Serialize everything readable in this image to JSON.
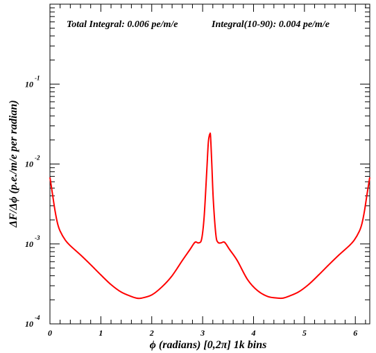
{
  "chart_data": {
    "type": "line",
    "title": "",
    "annotations": [
      "Total Integral: 0.006 pe/m/e",
      "Integral(10-90): 0.004 pe/m/e"
    ],
    "xlabel": "ϕ (radians) [0,2π] 1k bins",
    "ylabel": "ΔF/Δϕ (p.e./m/e per radian)",
    "xlim": [
      0,
      6.2832
    ],
    "ylim": [
      0.0001,
      1.0
    ],
    "yscale": "log",
    "grid": false,
    "x_ticks": [
      {
        "value": 0,
        "label": "0"
      },
      {
        "value": 1,
        "label": "1"
      },
      {
        "value": 2,
        "label": "2"
      },
      {
        "value": 3,
        "label": "3"
      },
      {
        "value": 4,
        "label": "4"
      },
      {
        "value": 5,
        "label": "5"
      },
      {
        "value": 6,
        "label": "6"
      }
    ],
    "y_ticks": [
      {
        "value": 0.0001,
        "base": "10",
        "exp": "-4"
      },
      {
        "value": 0.001,
        "base": "10",
        "exp": "-3"
      },
      {
        "value": 0.01,
        "base": "10",
        "exp": "-2"
      },
      {
        "value": 0.1,
        "base": "10",
        "exp": "-1"
      }
    ],
    "series": [
      {
        "color": "#ff0000",
        "x": [
          0.0,
          0.05,
          0.1,
          0.15,
          0.2,
          0.3,
          0.4,
          0.6,
          0.8,
          1.0,
          1.2,
          1.4,
          1.6,
          1.7,
          1.8,
          2.0,
          2.2,
          2.4,
          2.6,
          2.75,
          2.85,
          2.92,
          2.98,
          3.03,
          3.08,
          3.11,
          3.13,
          3.1416,
          3.155,
          3.18,
          3.21,
          3.26,
          3.3,
          3.36,
          3.43,
          3.53,
          3.68,
          3.88,
          4.08,
          4.28,
          4.48,
          4.58,
          4.68,
          4.88,
          5.08,
          5.28,
          5.48,
          5.68,
          5.88,
          5.98,
          6.08,
          6.13,
          6.18,
          6.23,
          6.2832
        ],
        "y": [
          0.0068,
          0.0042,
          0.0026,
          0.0018,
          0.00145,
          0.00112,
          0.00095,
          0.00073,
          0.00055,
          0.00041,
          0.00031,
          0.00025,
          0.00022,
          0.00021,
          0.00021,
          0.00023,
          0.00029,
          0.0004,
          0.00062,
          0.00085,
          0.00105,
          0.00103,
          0.00115,
          0.0022,
          0.008,
          0.018,
          0.0225,
          0.0235,
          0.0225,
          0.01,
          0.0035,
          0.0013,
          0.00105,
          0.00103,
          0.00105,
          0.00085,
          0.00062,
          0.00036,
          0.00026,
          0.00022,
          0.00021,
          0.00021,
          0.00022,
          0.00025,
          0.00031,
          0.00041,
          0.00055,
          0.00073,
          0.00095,
          0.00112,
          0.00145,
          0.0018,
          0.0026,
          0.0042,
          0.0068
        ]
      }
    ]
  }
}
